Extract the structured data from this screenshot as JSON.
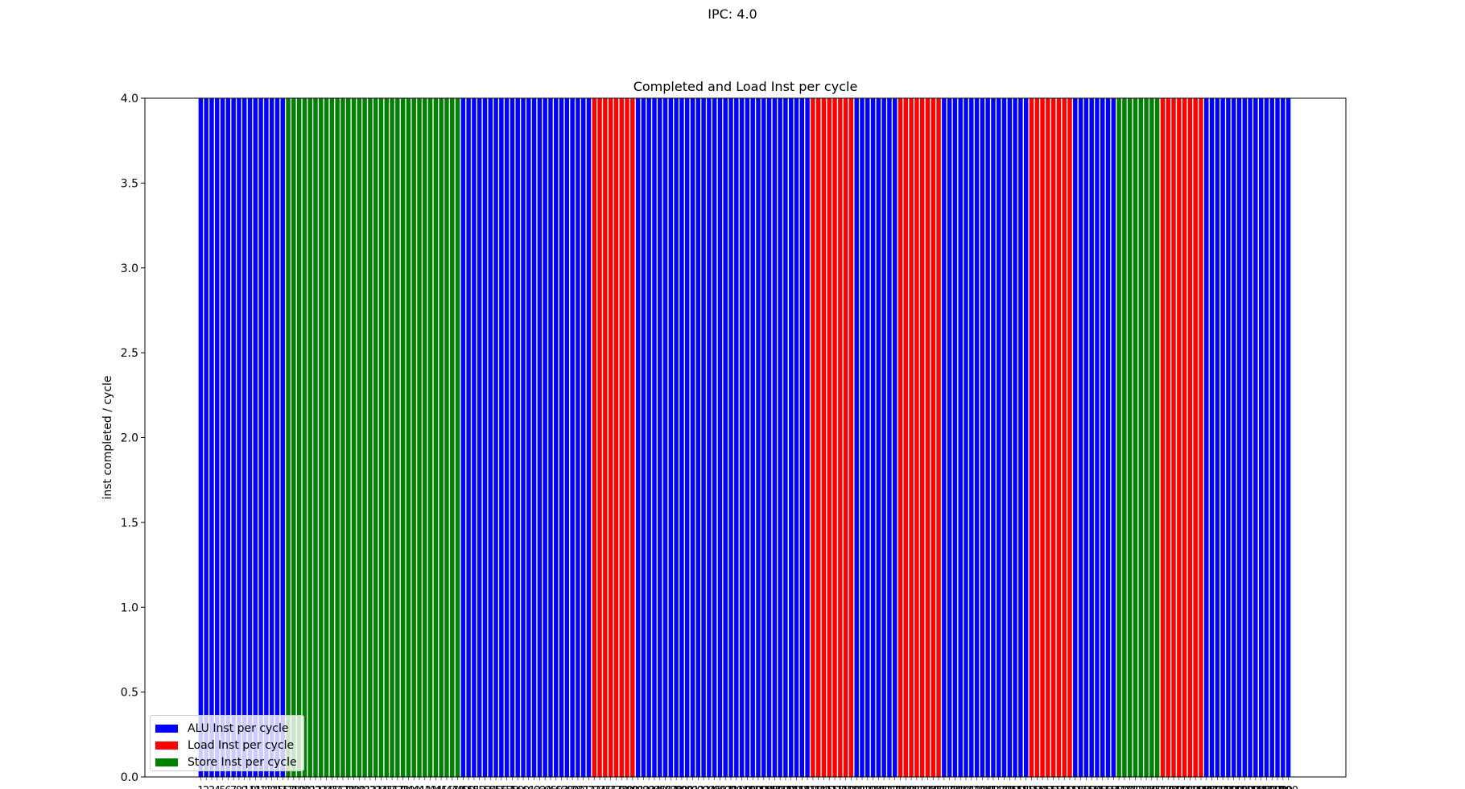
{
  "figure": {
    "suptitle": "IPC: 4.0"
  },
  "chart_data": {
    "type": "bar",
    "title": "Completed and Load Inst per cycle",
    "xlabel": "",
    "ylabel": "inst completed / cycle",
    "ylim": [
      0,
      4.0
    ],
    "yticks": [
      "0.0",
      "0.5",
      "1.0",
      "1.5",
      "2.0",
      "2.5",
      "3.0",
      "3.5",
      "4.0"
    ],
    "x_range": [
      1,
      200
    ],
    "value": 4,
    "runs": [
      {
        "series": "ALU Inst per cycle",
        "from": 1,
        "to": 16
      },
      {
        "series": "Store Inst per cycle",
        "from": 17,
        "to": 48
      },
      {
        "series": "ALU Inst per cycle",
        "from": 49,
        "to": 72
      },
      {
        "series": "Load Inst per cycle",
        "from": 73,
        "to": 80
      },
      {
        "series": "ALU Inst per cycle",
        "from": 81,
        "to": 112
      },
      {
        "series": "Load Inst per cycle",
        "from": 113,
        "to": 120
      },
      {
        "series": "ALU Inst per cycle",
        "from": 121,
        "to": 128
      },
      {
        "series": "Load Inst per cycle",
        "from": 129,
        "to": 136
      },
      {
        "series": "ALU Inst per cycle",
        "from": 137,
        "to": 152
      },
      {
        "series": "Load Inst per cycle",
        "from": 153,
        "to": 160
      },
      {
        "series": "ALU Inst per cycle",
        "from": 161,
        "to": 168
      },
      {
        "series": "Store Inst per cycle",
        "from": 169,
        "to": 176
      },
      {
        "series": "Load Inst per cycle",
        "from": 177,
        "to": 184
      },
      {
        "series": "ALU Inst per cycle",
        "from": 185,
        "to": 200
      }
    ],
    "series": [
      {
        "name": "ALU Inst per cycle",
        "color": "#0000ff"
      },
      {
        "name": "Load Inst per cycle",
        "color": "#ff0000"
      },
      {
        "name": "Store Inst per cycle",
        "color": "#008000"
      }
    ],
    "legend_position": "lower-left",
    "grid": false
  }
}
